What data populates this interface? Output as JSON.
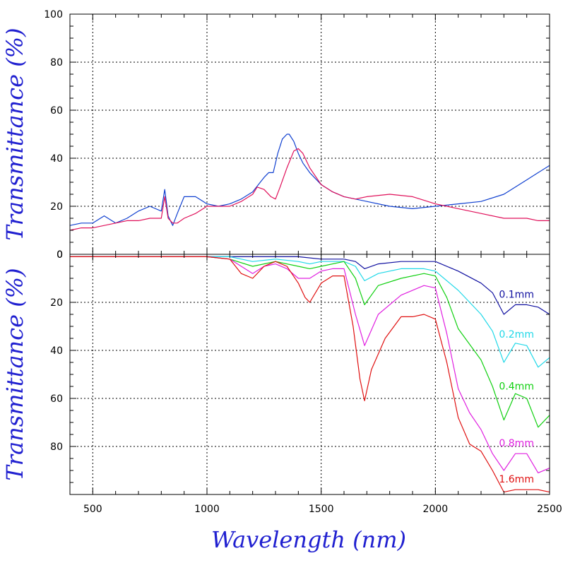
{
  "chart_data": {
    "type": "line",
    "xlabel": "Wavelength (nm)",
    "x_ticks": [
      500,
      1000,
      1500,
      2000,
      2500
    ],
    "xlim": [
      400,
      2500
    ],
    "grid": true,
    "panels": [
      {
        "id": "top",
        "ylabel": "Transmittance (%)",
        "ylim": [
          0,
          100
        ],
        "y_ticks": [
          0,
          20,
          40,
          60,
          80,
          100
        ],
        "series": [
          {
            "color": "#1040d0",
            "x": [
              400,
              450,
              500,
              550,
              600,
              650,
              700,
              750,
              800,
              815,
              830,
              850,
              870,
              900,
              950,
              1000,
              1050,
              1100,
              1150,
              1200,
              1250,
              1270,
              1290,
              1310,
              1330,
              1350,
              1360,
              1380,
              1400,
              1420,
              1450,
              1500,
              1550,
              1600,
              1650,
              1700,
              1800,
              1900,
              2000,
              2100,
              2200,
              2300,
              2400,
              2450,
              2500
            ],
            "y": [
              12,
              13,
              13,
              16,
              13,
              15,
              18,
              20,
              18,
              27,
              16,
              12,
              17,
              24,
              24,
              21,
              20,
              21,
              23,
              26,
              32,
              34,
              34,
              42,
              48,
              50,
              50,
              47,
              42,
              38,
              34,
              29,
              26,
              24,
              23,
              22,
              20,
              19,
              20,
              21,
              22,
              25,
              31,
              34,
              37
            ]
          },
          {
            "color": "#e0105a",
            "x": [
              400,
              450,
              500,
              550,
              600,
              650,
              700,
              750,
              800,
              815,
              830,
              850,
              870,
              900,
              950,
              1000,
              1050,
              1100,
              1150,
              1200,
              1220,
              1250,
              1280,
              1300,
              1320,
              1350,
              1380,
              1400,
              1420,
              1450,
              1500,
              1550,
              1600,
              1650,
              1700,
              1800,
              1900,
              2000,
              2100,
              2200,
              2300,
              2400,
              2450,
              2500
            ],
            "y": [
              10,
              11,
              11,
              12,
              13,
              14,
              14,
              15,
              15,
              24,
              15,
              13,
              13,
              15,
              17,
              20,
              20,
              20,
              22,
              25,
              28,
              27,
              24,
              23,
              28,
              36,
              43,
              44,
              42,
              36,
              29,
              26,
              24,
              23,
              24,
              25,
              24,
              21,
              19,
              17,
              15,
              15,
              14,
              14
            ]
          }
        ]
      },
      {
        "id": "bottom",
        "ylabel": "Transmittance (%)",
        "ylim": [
          0,
          100
        ],
        "y_ticks": [
          0,
          20,
          40,
          60,
          80
        ],
        "inverted": true,
        "series": [
          {
            "name": "0.1mm",
            "color": "#1010a0",
            "x": [
              400,
              1000,
              1200,
              1400,
              1500,
              1600,
              1650,
              1690,
              1750,
              1850,
              1950,
              2000,
              2100,
              2200,
              2250,
              2300,
              2350,
              2400,
              2450,
              2500
            ],
            "y": [
              1,
              1,
              1,
              1,
              2,
              2,
              3,
              6,
              4,
              3,
              3,
              3,
              7,
              12,
              16,
              25,
              21,
              21,
              22,
              25
            ]
          },
          {
            "name": "0.2mm",
            "color": "#20d8e8",
            "x": [
              400,
              1000,
              1100,
              1200,
              1300,
              1400,
              1450,
              1500,
              1600,
              1650,
              1690,
              1750,
              1850,
              1950,
              2000,
              2100,
              2200,
              2250,
              2300,
              2350,
              2400,
              2450,
              2500
            ],
            "y": [
              1,
              1,
              1,
              3,
              2,
              3,
              4,
              3,
              3,
              5,
              11,
              8,
              6,
              6,
              7,
              15,
              25,
              32,
              45,
              37,
              38,
              47,
              43
            ]
          },
          {
            "name": "0.4mm",
            "color": "#10d010",
            "x": [
              400,
              1000,
              1100,
              1200,
              1300,
              1400,
              1450,
              1500,
              1600,
              1650,
              1690,
              1750,
              1850,
              1950,
              2000,
              2050,
              2100,
              2200,
              2250,
              2300,
              2350,
              2400,
              2450,
              2500
            ],
            "y": [
              1,
              1,
              2,
              5,
              3,
              5,
              6,
              5,
              3,
              10,
              21,
              13,
              10,
              8,
              9,
              18,
              31,
              44,
              55,
              69,
              58,
              60,
              72,
              67
            ]
          },
          {
            "name": "0.8mm",
            "color": "#e020e0",
            "x": [
              400,
              1000,
              1100,
              1150,
              1200,
              1250,
              1300,
              1350,
              1400,
              1450,
              1500,
              1550,
              1600,
              1650,
              1690,
              1750,
              1850,
              1950,
              2000,
              2050,
              2100,
              2150,
              2200,
              2250,
              2300,
              2350,
              2400,
              2450,
              2500
            ],
            "y": [
              1,
              1,
              2,
              5,
              8,
              5,
              4,
              6,
              10,
              10,
              7,
              6,
              6,
              25,
              38,
              25,
              17,
              13,
              14,
              33,
              56,
              66,
              73,
              83,
              90,
              83,
              83,
              91,
              89
            ]
          },
          {
            "name": "1.6mm",
            "color": "#e01010",
            "x": [
              400,
              1000,
              1100,
              1150,
              1200,
              1250,
              1300,
              1350,
              1400,
              1430,
              1450,
              1500,
              1550,
              1600,
              1640,
              1670,
              1690,
              1720,
              1780,
              1850,
              1900,
              1950,
              2000,
              2050,
              2100,
              2150,
              2200,
              2250,
              2300,
              2350,
              2400,
              2450,
              2500
            ],
            "y": [
              1,
              1,
              2,
              8,
              10,
              5,
              3,
              5,
              12,
              18,
              20,
              12,
              9,
              9,
              30,
              52,
              61,
              48,
              35,
              26,
              26,
              25,
              27,
              45,
              68,
              79,
              82,
              90,
              99,
              98,
              98,
              98,
              99
            ]
          }
        ]
      }
    ]
  }
}
